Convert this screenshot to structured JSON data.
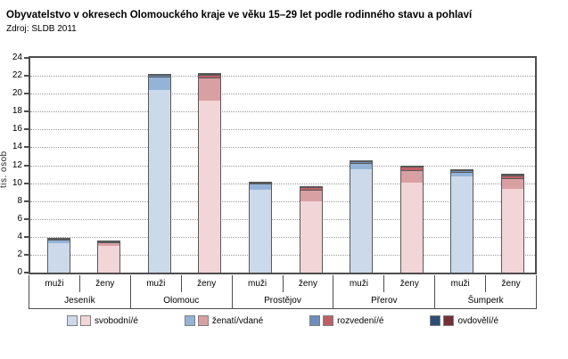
{
  "title": "Obyvatelstvo v okresech Olomouckého kraje ve věku 15–29 let podle rodinného stavu a pohlaví",
  "source": "Zdroj: SLDB 2011",
  "chart_data": {
    "type": "bar",
    "stacked": true,
    "title": "Obyvatelstvo v okresech Olomouckého kraje ve věku 15–29 let podle rodinného stavu a pohlaví",
    "subtitle": "Zdroj: SLDB 2011",
    "ylabel": "tis. osob",
    "ylim": [
      0,
      24
    ],
    "ytick_step": 2,
    "grid": "horizontal-dotted",
    "legend_position": "bottom",
    "districts": [
      "Jeseník",
      "Olomouc",
      "Prostějov",
      "Přerov",
      "Šumperk"
    ],
    "bar_labels": [
      "muži",
      "ženy"
    ],
    "categories": [
      "Jeseník muži",
      "Jeseník ženy",
      "Olomouc muži",
      "Olomouc ženy",
      "Prostějov muži",
      "Prostějov ženy",
      "Přerov muži",
      "Přerov ženy",
      "Šumperk muži",
      "Šumperk ženy"
    ],
    "series": [
      {
        "name": "svobodní/é",
        "values": [
          3.3,
          3.0,
          20.4,
          19.2,
          9.3,
          8.0,
          11.6,
          10.1,
          10.8,
          9.4
        ]
      },
      {
        "name": "ženatí/vdané",
        "values": [
          0.35,
          0.35,
          1.55,
          2.6,
          0.65,
          1.3,
          0.7,
          1.4,
          0.5,
          1.15
        ]
      },
      {
        "name": "rozvedení/é",
        "values": [
          0.08,
          0.1,
          0.15,
          0.35,
          0.1,
          0.25,
          0.12,
          0.35,
          0.15,
          0.35
        ]
      },
      {
        "name": "ovdovělí/é",
        "values": [
          0.02,
          0.02,
          0.02,
          0.05,
          0.02,
          0.03,
          0.02,
          0.03,
          0.02,
          0.03
        ]
      }
    ],
    "legend": [
      {
        "label": "svobodní/é",
        "male_color": "#ccd9ea",
        "female_color": "#f2d5d6"
      },
      {
        "label": "ženatí/vdané",
        "male_color": "#95b3d7",
        "female_color": "#d9a0a3"
      },
      {
        "label": "rozvedení/é",
        "male_color": "#6d8ebc",
        "female_color": "#bf6067"
      },
      {
        "label": "ovdovělí/é",
        "male_color": "#2c4d75",
        "female_color": "#772f33"
      }
    ],
    "colors": {
      "bar_border": "#595959",
      "axis_border": "#4d4d4d",
      "gridline": "#9b9b9b"
    }
  }
}
